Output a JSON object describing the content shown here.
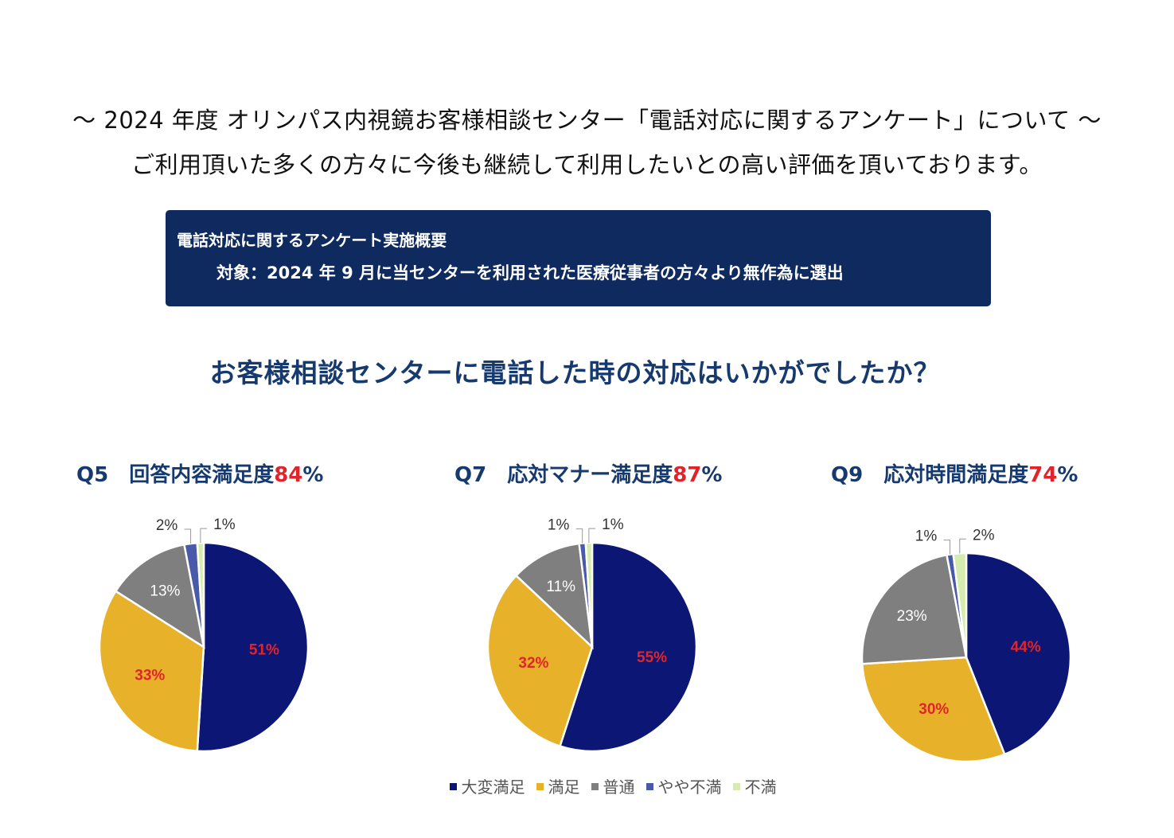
{
  "header": {
    "line1": "～ 2024 年度 オリンパス内視鏡お客様相談センター「電話対応に関するアンケート」について ～",
    "line2": "ご利用頂いた多くの方々に今後も継続して利用したいとの高い評価を頂いております。"
  },
  "infobox": {
    "title": "電話対応に関するアンケート実施概要",
    "target": "対象：2024 年 9 月に当センターを利用された医療従事者の方々より無作為に選出"
  },
  "question": "お客様相談センターに電話した時の対応はいかがでしたか？",
  "colors": {
    "very_satisfied": "#0c1674",
    "satisfied": "#e8b12a",
    "neutral": "#7f7f7f",
    "somewhat_dissatisfied": "#4b5aa8",
    "dissatisfied": "#d6ecae",
    "inside_label": "#e0242b",
    "title": "#173a6e"
  },
  "legend": [
    "大変満足",
    "満足",
    "普通",
    "やや不満",
    "不満"
  ],
  "chart_data": [
    {
      "type": "pie",
      "question_no": "Q5",
      "title": "回答内容満足度",
      "score": "84",
      "score_unit": "%",
      "categories": [
        "大変満足",
        "満足",
        "普通",
        "やや不満",
        "不満"
      ],
      "values": [
        51,
        33,
        13,
        2,
        1
      ],
      "labels": [
        "51%",
        "33%",
        "13%",
        "2%",
        "1%"
      ]
    },
    {
      "type": "pie",
      "question_no": "Q7",
      "title": "応対マナー満足度",
      "score": "87",
      "score_unit": "%",
      "categories": [
        "大変満足",
        "満足",
        "普通",
        "やや不満",
        "不満"
      ],
      "values": [
        55,
        32,
        11,
        1,
        1
      ],
      "labels": [
        "55%",
        "32%",
        "11%",
        "1%",
        "1%"
      ]
    },
    {
      "type": "pie",
      "question_no": "Q9",
      "title": "応対時間満足度",
      "score": "74",
      "score_unit": "%",
      "categories": [
        "大変満足",
        "満足",
        "普通",
        "やや不満",
        "不満"
      ],
      "values": [
        44,
        30,
        23,
        1,
        2
      ],
      "labels": [
        "44%",
        "30%",
        "23%",
        "1%",
        "2%"
      ]
    }
  ]
}
